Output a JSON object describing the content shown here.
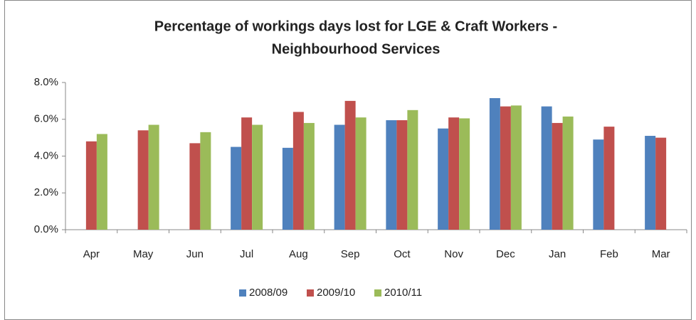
{
  "chart_data": {
    "type": "bar",
    "title": [
      "Percentage of workings days lost for LGE & Craft Workers -",
      "Neighbourhood Services"
    ],
    "categories": [
      "Apr",
      "May",
      "Jun",
      "Jul",
      "Aug",
      "Sep",
      "Oct",
      "Nov",
      "Dec",
      "Jan",
      "Feb",
      "Mar"
    ],
    "series": [
      {
        "name": "2008/09",
        "color": "#4f81bd",
        "values": [
          null,
          null,
          null,
          4.5,
          4.45,
          5.7,
          5.95,
          5.5,
          7.15,
          6.7,
          4.9,
          5.1
        ]
      },
      {
        "name": "2009/10",
        "color": "#c0504d",
        "values": [
          4.8,
          5.4,
          4.7,
          6.1,
          6.4,
          7.0,
          5.95,
          6.1,
          6.7,
          5.8,
          5.6,
          5.0
        ]
      },
      {
        "name": "2010/11",
        "color": "#9bbb59",
        "values": [
          5.2,
          5.7,
          5.3,
          5.7,
          5.8,
          6.1,
          6.5,
          6.05,
          6.75,
          6.15,
          null,
          null
        ]
      }
    ],
    "ylim": [
      0,
      8
    ],
    "yticks": [
      {
        "value": 0,
        "label": "0.0%"
      },
      {
        "value": 2,
        "label": "2.0%"
      },
      {
        "value": 4,
        "label": "4.0%"
      },
      {
        "value": 6,
        "label": "6.0%"
      },
      {
        "value": 8,
        "label": "8.0%"
      }
    ],
    "grid": false,
    "legend": "bottom"
  }
}
